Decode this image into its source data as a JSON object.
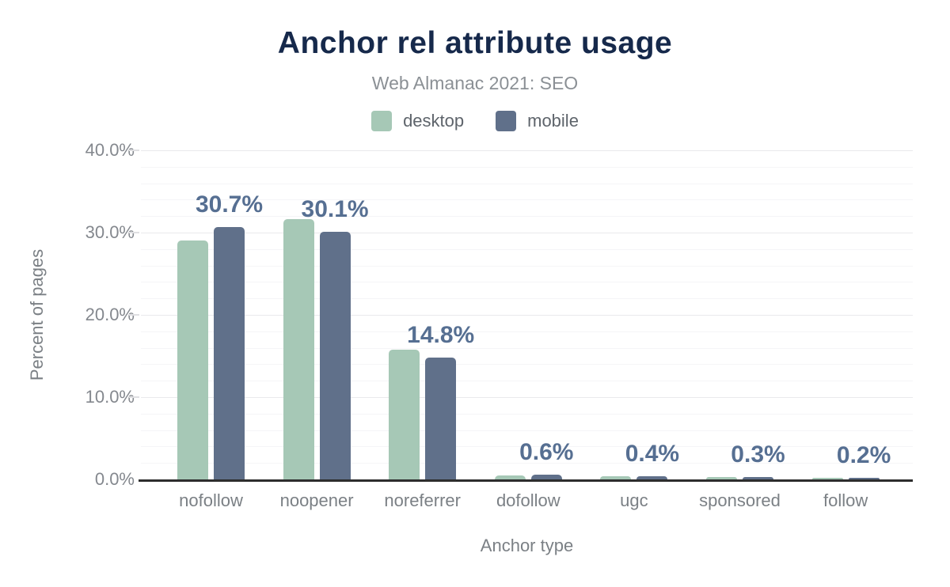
{
  "header": {
    "title": "Anchor rel attribute usage",
    "subtitle": "Web Almanac 2021: SEO"
  },
  "legend": [
    {
      "label": "desktop",
      "color": "#a6c8b6"
    },
    {
      "label": "mobile",
      "color": "#60708a"
    }
  ],
  "chart_data": {
    "type": "bar",
    "title": "Anchor rel attribute usage",
    "subtitle": "Web Almanac 2021: SEO",
    "categories": [
      "nofollow",
      "noopener",
      "noreferrer",
      "dofollow",
      "ugc",
      "sponsored",
      "follow"
    ],
    "series": [
      {
        "name": "desktop",
        "color": "#a6c8b6",
        "values": [
          29.0,
          31.6,
          15.8,
          0.5,
          0.4,
          0.3,
          0.2
        ]
      },
      {
        "name": "mobile",
        "color": "#60708a",
        "values": [
          30.7,
          30.1,
          14.8,
          0.6,
          0.4,
          0.3,
          0.2
        ]
      }
    ],
    "data_labels": {
      "on_series": "mobile",
      "values": [
        "30.7%",
        "30.1%",
        "14.8%",
        "0.6%",
        "0.4%",
        "0.3%",
        "0.2%"
      ]
    },
    "xlabel": "Anchor type",
    "ylabel": "Percent of pages",
    "ylim": [
      0,
      40
    ],
    "ytick_labels": [
      "0.0%",
      "10.0%",
      "20.0%",
      "30.0%",
      "40.0%"
    ],
    "ytick_step": 10,
    "minor_grid_step": 2,
    "grid": true,
    "legend_position": "top",
    "colors": {
      "title": "#16294b",
      "subtitle": "#8b9095",
      "data_label": "#566f92",
      "axis_text": "#7b8085",
      "ytick_text": "#84888e",
      "axis_line": "#2d2d2d",
      "major_grid": "#e9e9ec",
      "minor_grid": "#f5f5f7"
    }
  }
}
